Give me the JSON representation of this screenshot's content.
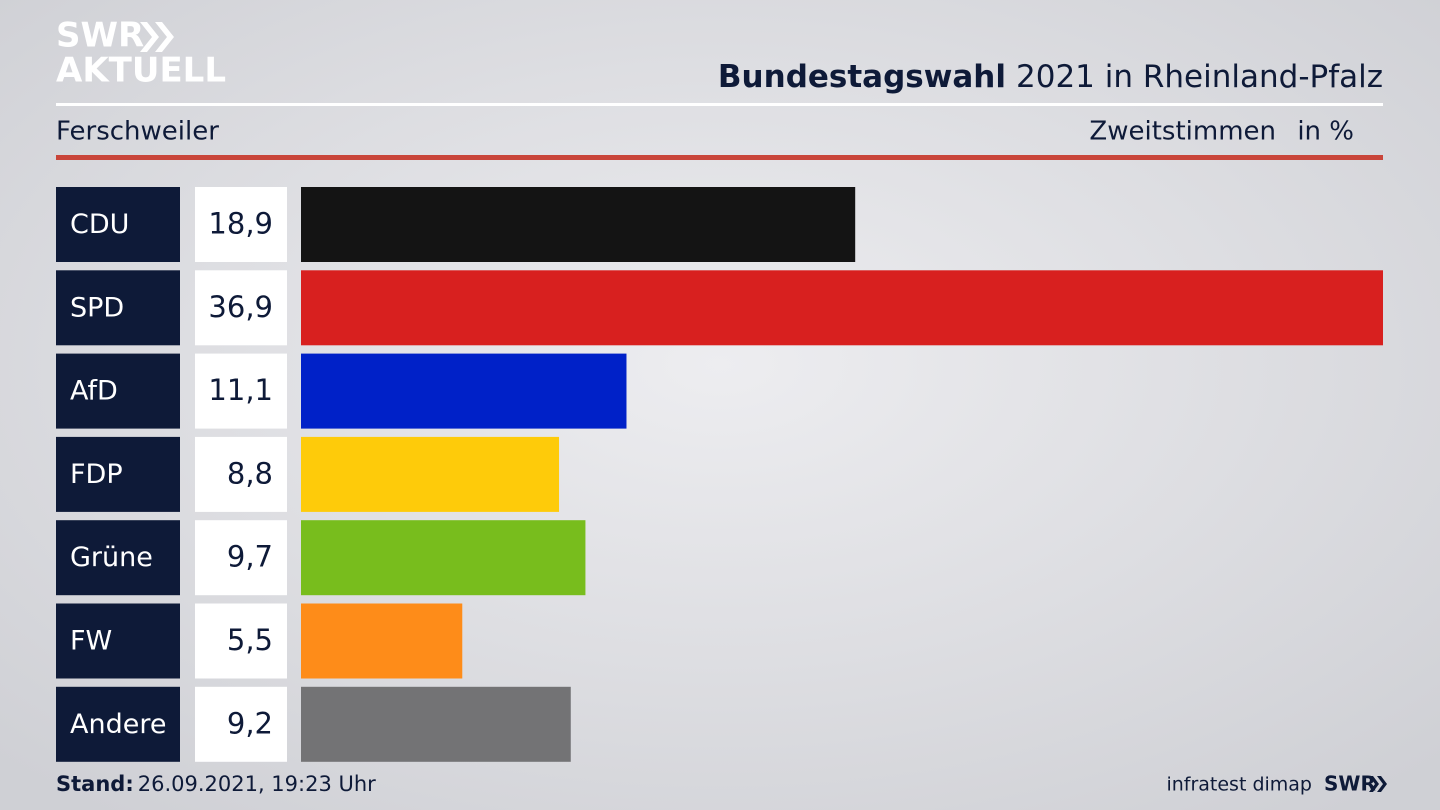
{
  "chart_data": {
    "type": "bar",
    "orientation": "horizontal",
    "logo": {
      "top": "SWR",
      "bottom": "AKTUELL"
    },
    "title_bold": "Bundestagswahl",
    "title": "2021 in Rheinland-Pfalz",
    "subtitle": "Ferschweiler",
    "measure": "Zweitstimmen",
    "unit": "in %",
    "categories": [
      "CDU",
      "SPD",
      "AfD",
      "FDP",
      "Grüne",
      "FW",
      "Andere"
    ],
    "values": [
      18.9,
      36.9,
      11.1,
      8.8,
      9.7,
      5.5,
      9.2
    ],
    "value_labels": [
      "18,9",
      "36,9",
      "11,1",
      "8,8",
      "9,7",
      "5,5",
      "9,2"
    ],
    "colors": [
      "#141414",
      "#d8201f",
      "#0021c8",
      "#fecb0a",
      "#78bd1d",
      "#fe8c19",
      "#737375"
    ],
    "footer": {
      "stand_label": "Stand:",
      "stand": "26.09.2021, 19:23 Uhr",
      "source": "infratest dimap",
      "brand": "SWR"
    }
  }
}
